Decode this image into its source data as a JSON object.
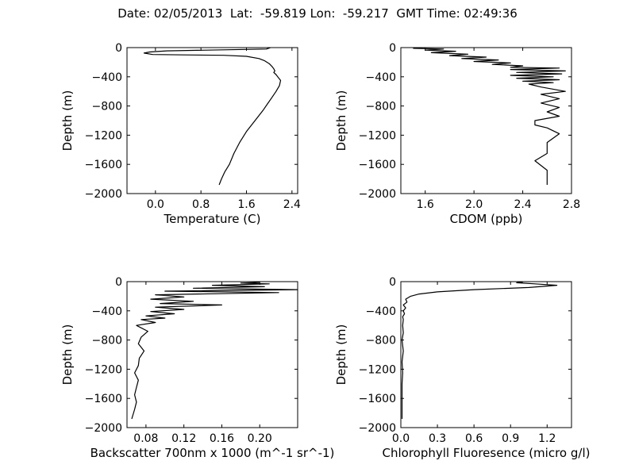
{
  "title": "Date: 02/05/2013  Lat:  -59.819 Lon:  -59.217  GMT Time: 02:49:36",
  "chart_data": [
    {
      "type": "line",
      "xlabel": "Temperature (C)",
      "ylabel": "Depth (m)",
      "xlim": [
        -0.5,
        2.5
      ],
      "ylim": [
        -2000,
        0
      ],
      "xticks": [
        0.0,
        0.8,
        1.6,
        2.4
      ],
      "xtick_labels": [
        "0.0",
        "0.8",
        "1.6",
        "2.4"
      ],
      "yticks": [
        0,
        -400,
        -800,
        -1200,
        -1600,
        -2000
      ],
      "ytick_labels": [
        "0",
        "−400",
        "−800",
        "−1200",
        "−1600",
        "−2000"
      ],
      "x": [
        2.02,
        1.95,
        0.2,
        -0.1,
        -0.2,
        -0.05,
        0.5,
        1.2,
        1.6,
        1.82,
        1.92,
        2.0,
        2.05,
        2.08,
        2.1,
        2.08,
        2.12,
        2.15,
        2.2,
        2.18,
        2.12,
        2.05,
        1.98,
        1.9,
        1.75,
        1.6,
        1.48,
        1.38,
        1.3,
        1.22,
        1.16,
        1.12
      ],
      "y": [
        0,
        -20,
        -45,
        -60,
        -75,
        -95,
        -100,
        -105,
        -120,
        -150,
        -180,
        -220,
        -260,
        -290,
        -320,
        -340,
        -370,
        -400,
        -450,
        -520,
        -600,
        -680,
        -760,
        -850,
        -1000,
        -1150,
        -1300,
        -1450,
        -1600,
        -1700,
        -1800,
        -1880
      ]
    },
    {
      "type": "line",
      "xlabel": "CDOM (ppb)",
      "ylabel": "Depth (m)",
      "xlim": [
        1.4,
        2.8
      ],
      "ylim": [
        -2000,
        0
      ],
      "xticks": [
        1.6,
        2.0,
        2.4,
        2.8
      ],
      "xtick_labels": [
        "1.6",
        "2.0",
        "2.4",
        "2.8"
      ],
      "yticks": [
        0,
        -400,
        -800,
        -1200,
        -1600,
        -2000
      ],
      "ytick_labels": [
        "0",
        "−400",
        "−800",
        "−1200",
        "−1600",
        "−2000"
      ],
      "x": [
        1.5,
        1.75,
        1.6,
        1.85,
        1.65,
        1.95,
        1.8,
        2.1,
        1.9,
        2.2,
        2.0,
        2.3,
        2.15,
        2.4,
        2.3,
        2.7,
        2.3,
        2.75,
        2.35,
        2.72,
        2.3,
        2.65,
        2.35,
        2.7,
        2.4,
        2.65,
        2.45,
        2.55,
        2.75,
        2.55,
        2.7,
        2.55,
        2.7,
        2.6,
        2.7,
        2.5,
        2.5,
        2.6,
        2.7,
        2.6,
        2.6,
        2.5,
        2.6,
        2.6,
        2.6
      ],
      "y": [
        -10,
        -20,
        -35,
        -50,
        -70,
        -90,
        -110,
        -130,
        -150,
        -170,
        -190,
        -210,
        -230,
        -250,
        -270,
        -280,
        -300,
        -320,
        -340,
        -360,
        -380,
        -400,
        -420,
        -440,
        -460,
        -480,
        -500,
        -540,
        -600,
        -640,
        -700,
        -760,
        -820,
        -880,
        -940,
        -1000,
        -1060,
        -1100,
        -1180,
        -1300,
        -1450,
        -1550,
        -1680,
        -1780,
        -1880
      ]
    },
    {
      "type": "line",
      "xlabel": "Backscatter 700nm x 1000 (m^-1 sr^-1)",
      "ylabel": "Depth (m)",
      "xlim": [
        0.06,
        0.24
      ],
      "ylim": [
        -2000,
        0
      ],
      "xticks": [
        0.08,
        0.12,
        0.16,
        0.2
      ],
      "xtick_labels": [
        "0.08",
        "0.12",
        "0.16",
        "0.20"
      ],
      "yticks": [
        0,
        -400,
        -800,
        -1200,
        -1600,
        -2000
      ],
      "ytick_labels": [
        "0",
        "−400",
        "−800",
        "−1200",
        "−1600",
        "−2000"
      ],
      "x": [
        0.2,
        0.18,
        0.21,
        0.15,
        0.205,
        0.13,
        0.24,
        0.1,
        0.22,
        0.09,
        0.12,
        0.085,
        0.13,
        0.095,
        0.16,
        0.09,
        0.12,
        0.085,
        0.11,
        0.08,
        0.1,
        0.075,
        0.09,
        0.07,
        0.082,
        0.075,
        0.072,
        0.078,
        0.073,
        0.072,
        0.068,
        0.072,
        0.07,
        0.068,
        0.07,
        0.068,
        0.065
      ],
      "y": [
        -10,
        -20,
        -30,
        -50,
        -70,
        -90,
        -110,
        -130,
        -150,
        -180,
        -210,
        -240,
        -270,
        -300,
        -320,
        -350,
        -380,
        -410,
        -440,
        -470,
        -500,
        -520,
        -560,
        -600,
        -680,
        -760,
        -850,
        -950,
        -1050,
        -1150,
        -1250,
        -1350,
        -1450,
        -1550,
        -1650,
        -1750,
        -1880
      ]
    },
    {
      "type": "line",
      "xlabel": "Chlorophyll Fluoresence (micro g/l)",
      "ylabel": "Depth (m)",
      "xlim": [
        0.0,
        1.4
      ],
      "ylim": [
        -2000,
        0
      ],
      "xticks": [
        0.0,
        0.3,
        0.6,
        0.9,
        1.2
      ],
      "xtick_labels": [
        "0.0",
        "0.3",
        "0.6",
        "0.9",
        "1.2"
      ],
      "yticks": [
        0,
        -400,
        -800,
        -1200,
        -1600,
        -2000
      ],
      "ytick_labels": [
        "0",
        "−400",
        "−800",
        "−1200",
        "−1600",
        "−2000"
      ],
      "x": [
        1.0,
        0.95,
        1.1,
        1.28,
        1.05,
        0.6,
        0.3,
        0.15,
        0.08,
        0.04,
        0.05,
        0.02,
        0.04,
        0.02,
        0.03,
        0.015,
        0.02,
        0.015,
        0.02,
        0.01,
        0.02,
        0.01,
        0.015,
        0.01,
        0.01,
        0.01,
        0.01
      ],
      "y": [
        -5,
        -15,
        -30,
        -50,
        -80,
        -110,
        -140,
        -170,
        -200,
        -240,
        -280,
        -320,
        -360,
        -400,
        -440,
        -480,
        -520,
        -600,
        -700,
        -800,
        -950,
        -1100,
        -1250,
        -1400,
        -1550,
        -1700,
        -1880
      ]
    }
  ]
}
